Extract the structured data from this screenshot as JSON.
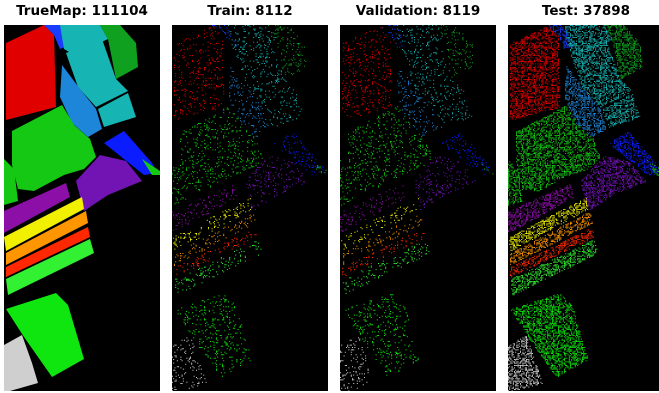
{
  "panels": [
    {
      "id": "truemap",
      "title": "TrueMap: 111104",
      "density": 1.0
    },
    {
      "id": "train",
      "title": "Train: 8112",
      "density": 0.12
    },
    {
      "id": "validation",
      "title": "Validation: 8119",
      "density": 0.12
    },
    {
      "id": "test",
      "title": "Test: 37898",
      "density": 0.5
    }
  ],
  "classes": [
    {
      "name": "red-field",
      "color": "#e00000"
    },
    {
      "name": "blue-strip",
      "color": "#1a3cff"
    },
    {
      "name": "cyan-fields",
      "color": "#17b4b4"
    },
    {
      "name": "green-top-right",
      "color": "#0ea01e"
    },
    {
      "name": "sky-blue-block",
      "color": "#1d86d8"
    },
    {
      "name": "green-center",
      "color": "#14c814"
    },
    {
      "name": "blue-right",
      "color": "#0b1cff"
    },
    {
      "name": "purple-field",
      "color": "#7214b4"
    },
    {
      "name": "dark-purple-strip",
      "color": "#8c10a8"
    },
    {
      "name": "yellow-stripes",
      "color": "#f0f000"
    },
    {
      "name": "orange-stripe",
      "color": "#ff9600"
    },
    {
      "name": "red-stripe",
      "color": "#ff2800"
    },
    {
      "name": "lime-green",
      "color": "#32f032"
    },
    {
      "name": "bright-green-field",
      "color": "#0fe60f"
    },
    {
      "name": "gray-corner",
      "color": "#cfcfcf"
    },
    {
      "name": "dark-green-right",
      "color": "#0a8c28"
    }
  ]
}
